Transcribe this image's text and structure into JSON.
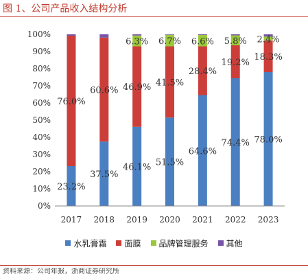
{
  "figure": {
    "title": "图 1、公司产品收入结构分析",
    "source": "资料来源：公司年报，浙商证券研究所"
  },
  "colors": {
    "title_accent": "#c0392b",
    "series": [
      "#4a7fc1",
      "#cc3e3a",
      "#9bc73a",
      "#7755a6"
    ]
  },
  "chart_data": {
    "type": "bar",
    "stacked": true,
    "percent_stacked": true,
    "categories": [
      "2017",
      "2018",
      "2019",
      "2020",
      "2021",
      "2022",
      "2023"
    ],
    "series": [
      {
        "name": "水乳膏霜",
        "values": [
          23.2,
          37.5,
          46.1,
          51.5,
          64.6,
          74.4,
          78.0
        ],
        "labels": [
          "23.2%",
          "37.5%",
          "46.1%",
          "51.5%",
          "64.6%",
          "74.4%",
          "78.0%"
        ]
      },
      {
        "name": "面膜",
        "values": [
          76.0,
          60.6,
          46.9,
          41.5,
          28.4,
          19.2,
          18.3
        ],
        "labels": [
          "76.0%",
          "60.6%",
          "46.9%",
          "41.5%",
          "28.4%",
          "19.2%",
          "18.3%"
        ]
      },
      {
        "name": "品牌管理服务",
        "values": [
          0,
          0,
          6.3,
          6.7,
          6.6,
          5.8,
          2.4
        ],
        "labels": [
          "",
          "",
          "6.3%",
          "6.7%",
          "6.6%",
          "5.8%",
          "2.4%"
        ]
      },
      {
        "name": "其他",
        "values": [
          0.8,
          1.9,
          0.7,
          0.3,
          0.4,
          0.6,
          1.3
        ],
        "labels": [
          "",
          "",
          "",
          "",
          "",
          "",
          ""
        ]
      }
    ],
    "yticks": [
      "0%",
      "10%",
      "20%",
      "30%",
      "40%",
      "50%",
      "60%",
      "70%",
      "80%",
      "90%",
      "100%"
    ],
    "ylim": [
      0,
      100
    ],
    "grid": false,
    "legend_position": "bottom"
  }
}
